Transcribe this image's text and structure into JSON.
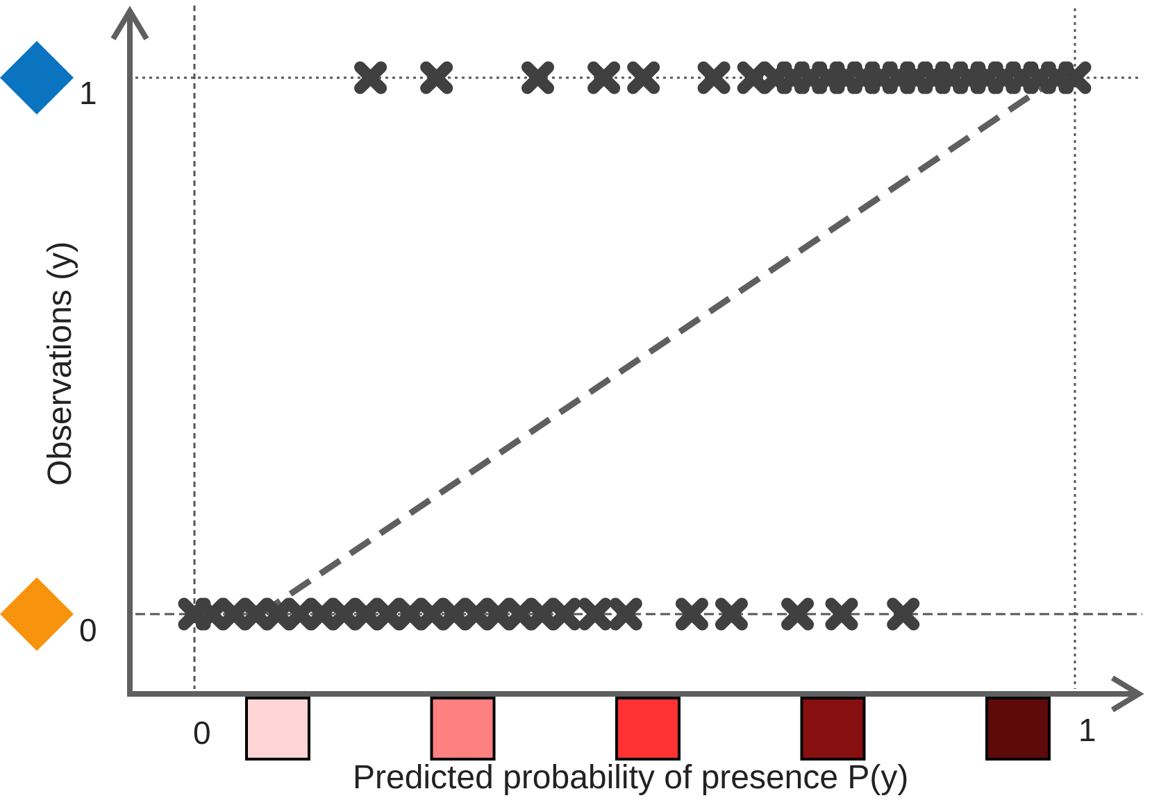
{
  "chart_data": {
    "type": "scatter",
    "title": "",
    "xlabel": "Predicted probability of presence P(y)",
    "ylabel": "Observations (y)",
    "xlim": [
      0,
      1
    ],
    "ylim": [
      0,
      1
    ],
    "x_ticks": [
      "0",
      "1"
    ],
    "y_ticks": [
      "0",
      "1"
    ],
    "grid": false,
    "series": [
      {
        "y": 1,
        "x": [
          0.2,
          0.275,
          0.39,
          0.465,
          0.51,
          0.59,
          0.635,
          0.66,
          0.68,
          0.7,
          0.72,
          0.74,
          0.76,
          0.78,
          0.8,
          0.82,
          0.84,
          0.86,
          0.88,
          0.9,
          0.92,
          0.94,
          0.96,
          0.98,
          1.0
        ],
        "marker": "x"
      },
      {
        "y": 0,
        "x": [
          0.0,
          0.02,
          0.045,
          0.07,
          0.095,
          0.12,
          0.145,
          0.17,
          0.195,
          0.22,
          0.245,
          0.27,
          0.295,
          0.32,
          0.345,
          0.37,
          0.395,
          0.42,
          0.455,
          0.49,
          0.565,
          0.61,
          0.685,
          0.735,
          0.805
        ],
        "marker": "x"
      }
    ],
    "reference_line": {
      "x": [
        0.075,
        0.98
      ],
      "y": [
        0,
        1
      ],
      "style": "dashed"
    },
    "y_level_markers": [
      {
        "y": 1,
        "color": "#0a74c0"
      },
      {
        "y": 0,
        "color": "#f7930c"
      }
    ],
    "x_color_bins": [
      "#ffd4d4",
      "#ff8080",
      "#fe3232",
      "#870f0f",
      "#5e0a0a"
    ]
  }
}
